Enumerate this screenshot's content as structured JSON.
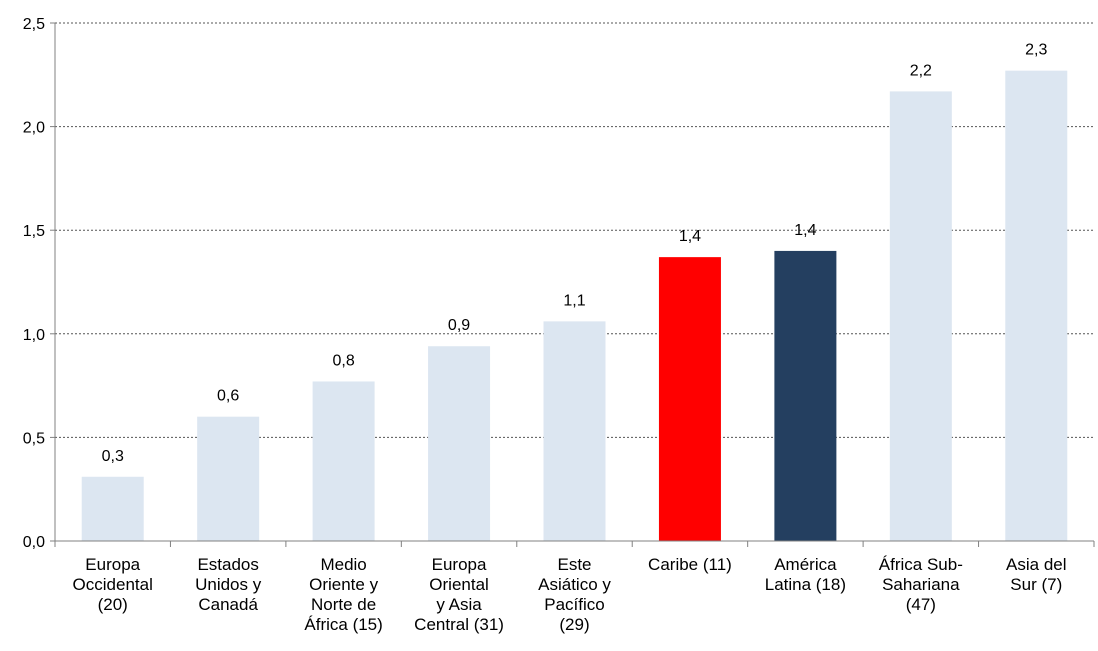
{
  "chart_data": {
    "type": "bar",
    "title": "",
    "xlabel": "",
    "ylabel": "",
    "ylim": [
      0,
      2.5
    ],
    "yticks": [
      "0,0",
      "0,5",
      "1,0",
      "1,5",
      "2,0",
      "2,5"
    ],
    "grid": "horizontal dotted",
    "categories": [
      [
        "Europa",
        "Occidental",
        "(20)"
      ],
      [
        "Estados",
        "Unidos y",
        "Canadá"
      ],
      [
        "Medio",
        "Oriente y",
        "Norte de",
        "África (15)"
      ],
      [
        "Europa",
        "Oriental",
        "y Asia",
        "Central (31)"
      ],
      [
        "Este",
        "Asiático y",
        "Pacífico",
        "(29)"
      ],
      [
        "Caribe (11)"
      ],
      [
        "América",
        "Latina (18)"
      ],
      [
        "África Sub-",
        "Sahariana",
        "(47)"
      ],
      [
        "Asia del",
        "Sur (7)"
      ]
    ],
    "values": [
      0.31,
      0.6,
      0.77,
      0.94,
      1.06,
      1.37,
      1.4,
      2.17,
      2.27
    ],
    "data_labels": [
      "0,3",
      "0,6",
      "0,8",
      "0,9",
      "1,1",
      "1,4",
      "1,4",
      "2,2",
      "2,3"
    ],
    "colors": [
      "#dce6f1",
      "#dce6f1",
      "#dce6f1",
      "#dce6f1",
      "#dce6f1",
      "#ff0000",
      "#243f60",
      "#dce6f1",
      "#dce6f1"
    ]
  }
}
